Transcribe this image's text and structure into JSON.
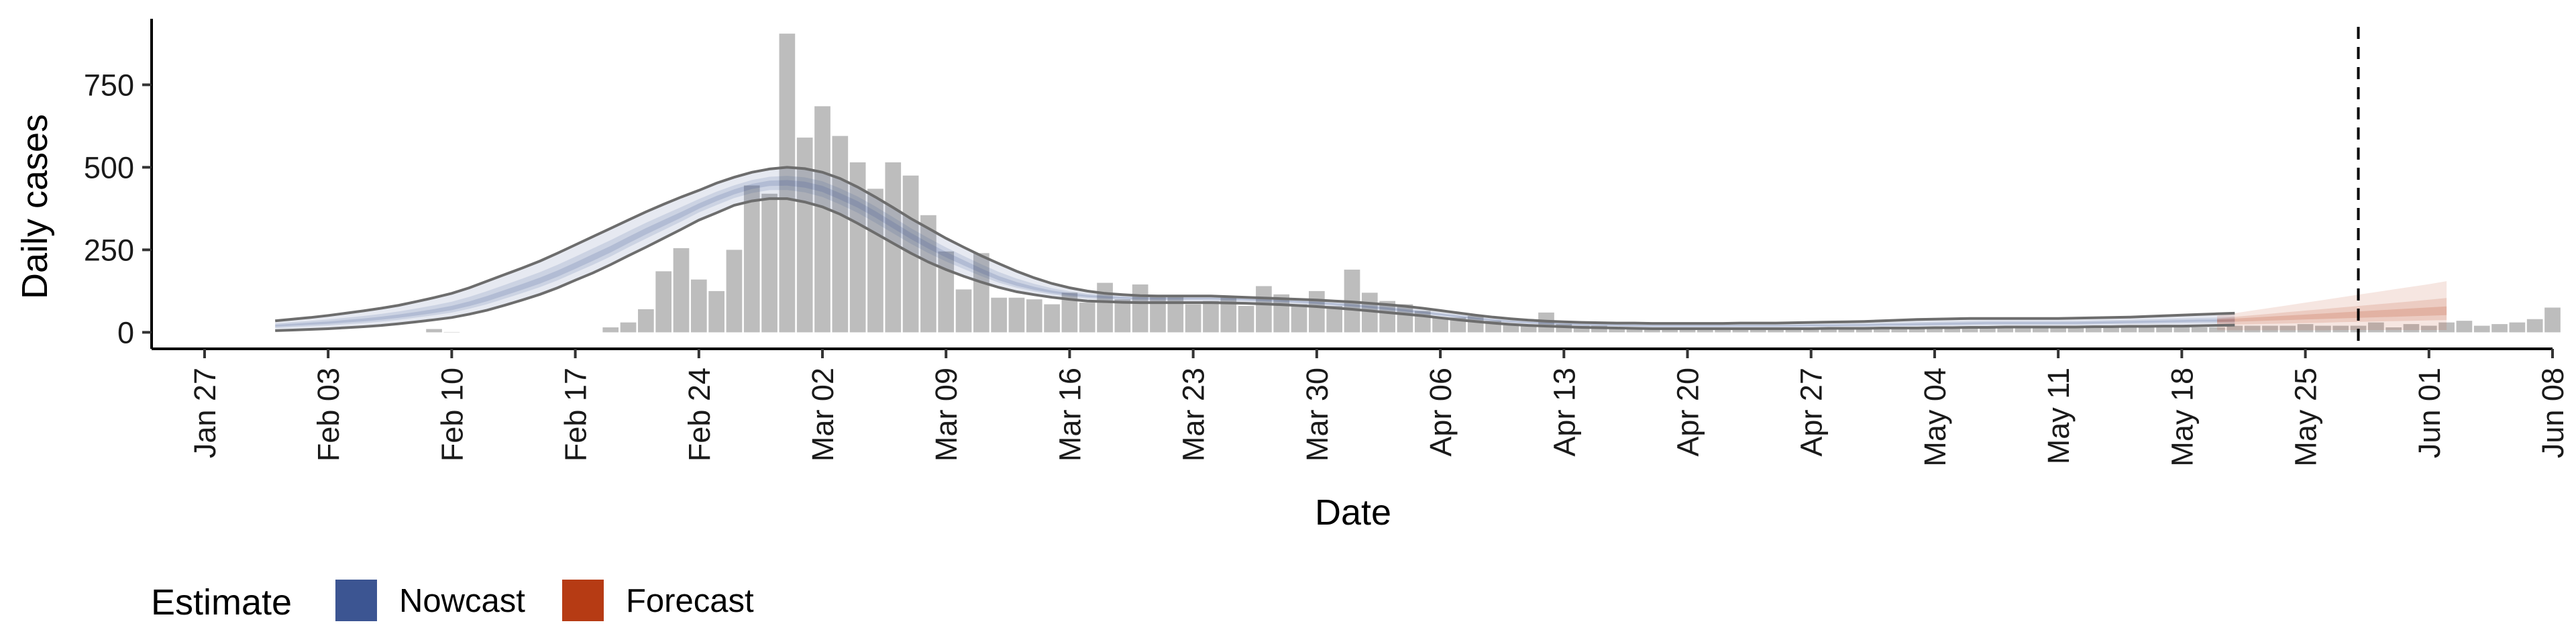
{
  "chart_data": {
    "type": "bar",
    "xlabel": "Date",
    "ylabel": "Daily cases",
    "x_axis": {
      "type": "date",
      "min": "2020-01-24",
      "max": "2020-06-08",
      "ticks": [
        "2020-01-27",
        "2020-02-03",
        "2020-02-10",
        "2020-02-17",
        "2020-02-24",
        "2020-03-02",
        "2020-03-09",
        "2020-03-16",
        "2020-03-23",
        "2020-03-30",
        "2020-04-06",
        "2020-04-13",
        "2020-04-20",
        "2020-04-27",
        "2020-05-04",
        "2020-05-11",
        "2020-05-18",
        "2020-05-25",
        "2020-06-01",
        "2020-06-08"
      ],
      "tick_labels": [
        "Jan 27",
        "Feb 03",
        "Feb 10",
        "Feb 17",
        "Feb 24",
        "Mar 02",
        "Mar 09",
        "Mar 16",
        "Mar 23",
        "Mar 30",
        "Apr 06",
        "Apr 13",
        "Apr 20",
        "Apr 27",
        "May 04",
        "May 11",
        "May 18",
        "May 25",
        "Jun 01",
        "Jun 08"
      ]
    },
    "y_axis": {
      "ylim": [
        -50,
        950
      ],
      "ticks": [
        0,
        250,
        500,
        750
      ],
      "tick_labels": [
        "0",
        "250",
        "500",
        "750"
      ]
    },
    "grid": false,
    "vline_date": "2020-05-28",
    "colors": {
      "bars": "#bdbdbd",
      "nowcast": "#3c5592",
      "forecast": "#b63b14",
      "lines": "#6d6d6d",
      "vline": "#000000"
    },
    "reported_cases": {
      "start": "2020-02-09",
      "values": [
        10,
        1,
        0,
        0,
        0,
        0,
        0,
        0,
        0,
        0,
        15,
        30,
        70,
        185,
        255,
        160,
        125,
        250,
        445,
        420,
        905,
        590,
        685,
        595,
        515,
        435,
        515,
        475,
        355,
        245,
        130,
        240,
        105,
        105,
        100,
        85,
        120,
        90,
        150,
        100,
        145,
        110,
        110,
        85,
        95,
        105,
        80,
        140,
        115,
        85,
        125,
        80,
        190,
        120,
        95,
        85,
        65,
        45,
        45,
        50,
        35,
        25,
        20,
        60,
        25,
        20,
        20,
        15,
        15,
        15,
        12,
        12,
        10,
        10,
        10,
        10,
        10,
        10,
        10,
        10,
        10,
        10,
        10,
        10,
        15,
        15,
        15,
        15,
        15,
        12,
        12,
        12,
        15,
        15,
        15,
        15,
        15,
        15,
        20,
        20,
        15,
        15,
        20,
        20,
        20,
        20,
        25,
        20,
        20,
        20,
        30,
        15,
        25,
        20,
        30,
        35,
        20,
        25,
        30,
        40,
        75
      ]
    },
    "nowcast": {
      "start": "2020-01-31",
      "median": [
        20,
        23,
        26,
        29,
        33,
        37,
        42,
        48,
        55,
        63,
        72,
        85,
        100,
        118,
        136,
        155,
        176,
        200,
        225,
        250,
        278,
        305,
        330,
        355,
        382,
        405,
        425,
        442,
        452,
        453,
        448,
        435,
        412,
        388,
        358,
        325,
        292,
        262,
        235,
        210,
        185,
        162,
        145,
        132,
        122,
        115,
        110,
        107,
        105,
        104,
        103,
        103,
        103,
        103,
        102,
        100,
        98,
        96,
        93,
        90,
        86,
        82,
        77,
        72,
        66,
        60,
        54,
        48,
        42,
        37,
        33,
        30,
        28,
        26,
        24,
        23,
        22,
        21,
        20,
        20,
        20,
        20,
        20,
        20,
        20,
        20,
        20,
        21,
        21,
        22,
        22,
        23,
        23,
        24,
        25,
        26,
        27,
        28,
        28,
        28,
        28,
        28,
        28,
        29,
        30,
        31,
        32,
        33,
        34,
        35,
        35,
        35
      ],
      "lower90": [
        5,
        7,
        9,
        11,
        14,
        17,
        21,
        26,
        32,
        38,
        45,
        55,
        67,
        82,
        98,
        115,
        135,
        158,
        180,
        205,
        232,
        258,
        285,
        312,
        340,
        362,
        385,
        398,
        405,
        405,
        395,
        380,
        358,
        330,
        300,
        270,
        240,
        213,
        190,
        170,
        152,
        136,
        123,
        114,
        106,
        100,
        95,
        93,
        91,
        90,
        90,
        90,
        90,
        90,
        89,
        88,
        86,
        84,
        81,
        78,
        74,
        70,
        65,
        60,
        55,
        50,
        44,
        38,
        33,
        28,
        24,
        21,
        19,
        17,
        15,
        14,
        13,
        12,
        11,
        11,
        11,
        11,
        11,
        11,
        11,
        11,
        11,
        11,
        12,
        12,
        12,
        13,
        13,
        13,
        14,
        14,
        15,
        15,
        16,
        16,
        16,
        16,
        16,
        17,
        17,
        18,
        18,
        19,
        19,
        20,
        21,
        22
      ],
      "upper90": [
        35,
        40,
        45,
        51,
        58,
        65,
        73,
        82,
        93,
        105,
        118,
        135,
        155,
        175,
        195,
        216,
        240,
        265,
        290,
        315,
        340,
        365,
        388,
        410,
        430,
        452,
        470,
        485,
        495,
        500,
        496,
        485,
        466,
        440,
        410,
        378,
        345,
        315,
        285,
        258,
        232,
        208,
        185,
        165,
        148,
        135,
        125,
        118,
        114,
        111,
        110,
        110,
        110,
        110,
        108,
        106,
        104,
        102,
        100,
        98,
        95,
        92,
        88,
        84,
        79,
        73,
        66,
        59,
        52,
        46,
        41,
        37,
        34,
        32,
        30,
        29,
        28,
        28,
        27,
        27,
        27,
        27,
        27,
        28,
        28,
        28,
        29,
        30,
        31,
        32,
        33,
        35,
        37,
        39,
        40,
        41,
        42,
        42,
        42,
        42,
        42,
        42,
        43,
        44,
        45,
        46,
        48,
        50,
        52,
        54,
        56,
        58
      ]
    },
    "forecast": {
      "start": "2020-05-20",
      "median": [
        36,
        38,
        40,
        42,
        44,
        46,
        48,
        50,
        52,
        54,
        56,
        58,
        60,
        62
      ],
      "lower90": [
        6,
        6,
        6,
        6,
        6,
        6,
        6,
        7,
        7,
        7,
        7,
        7,
        7,
        7
      ],
      "upper90": [
        50,
        58,
        66,
        74,
        82,
        90,
        98,
        106,
        114,
        122,
        130,
        138,
        146,
        155
      ]
    },
    "legend": {
      "title": "Estimate",
      "items": [
        {
          "label": "Nowcast",
          "color": "#3c5592"
        },
        {
          "label": "Forecast",
          "color": "#b63b14"
        }
      ]
    }
  }
}
